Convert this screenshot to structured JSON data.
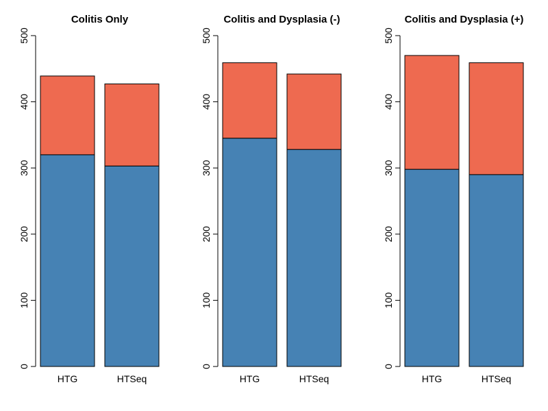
{
  "chart_data": [
    {
      "type": "bar",
      "stacked": true,
      "title": "Colitis Only",
      "categories": [
        "HTG",
        "HTSeq"
      ],
      "series": [
        {
          "values": [
            320,
            303
          ],
          "color": "#4682B4"
        },
        {
          "values": [
            119,
            124
          ],
          "color": "#EE6A50"
        }
      ],
      "ylim": [
        0,
        500
      ],
      "yticks": [
        0,
        100,
        200,
        300,
        400,
        500
      ],
      "grid": false
    },
    {
      "type": "bar",
      "stacked": true,
      "title": "Colitis and Dysplasia (-)",
      "categories": [
        "HTG",
        "HTSeq"
      ],
      "series": [
        {
          "values": [
            345,
            328
          ],
          "color": "#4682B4"
        },
        {
          "values": [
            114,
            114
          ],
          "color": "#EE6A50"
        }
      ],
      "ylim": [
        0,
        500
      ],
      "yticks": [
        0,
        100,
        200,
        300,
        400,
        500
      ],
      "grid": false
    },
    {
      "type": "bar",
      "stacked": true,
      "title": "Colitis and Dysplasia (+)",
      "categories": [
        "HTG",
        "HTSeq"
      ],
      "series": [
        {
          "values": [
            298,
            290
          ],
          "color": "#4682B4"
        },
        {
          "values": [
            172,
            169
          ],
          "color": "#EE6A50"
        }
      ],
      "ylim": [
        0,
        500
      ],
      "yticks": [
        0,
        100,
        200,
        300,
        400,
        500
      ],
      "grid": false
    }
  ]
}
